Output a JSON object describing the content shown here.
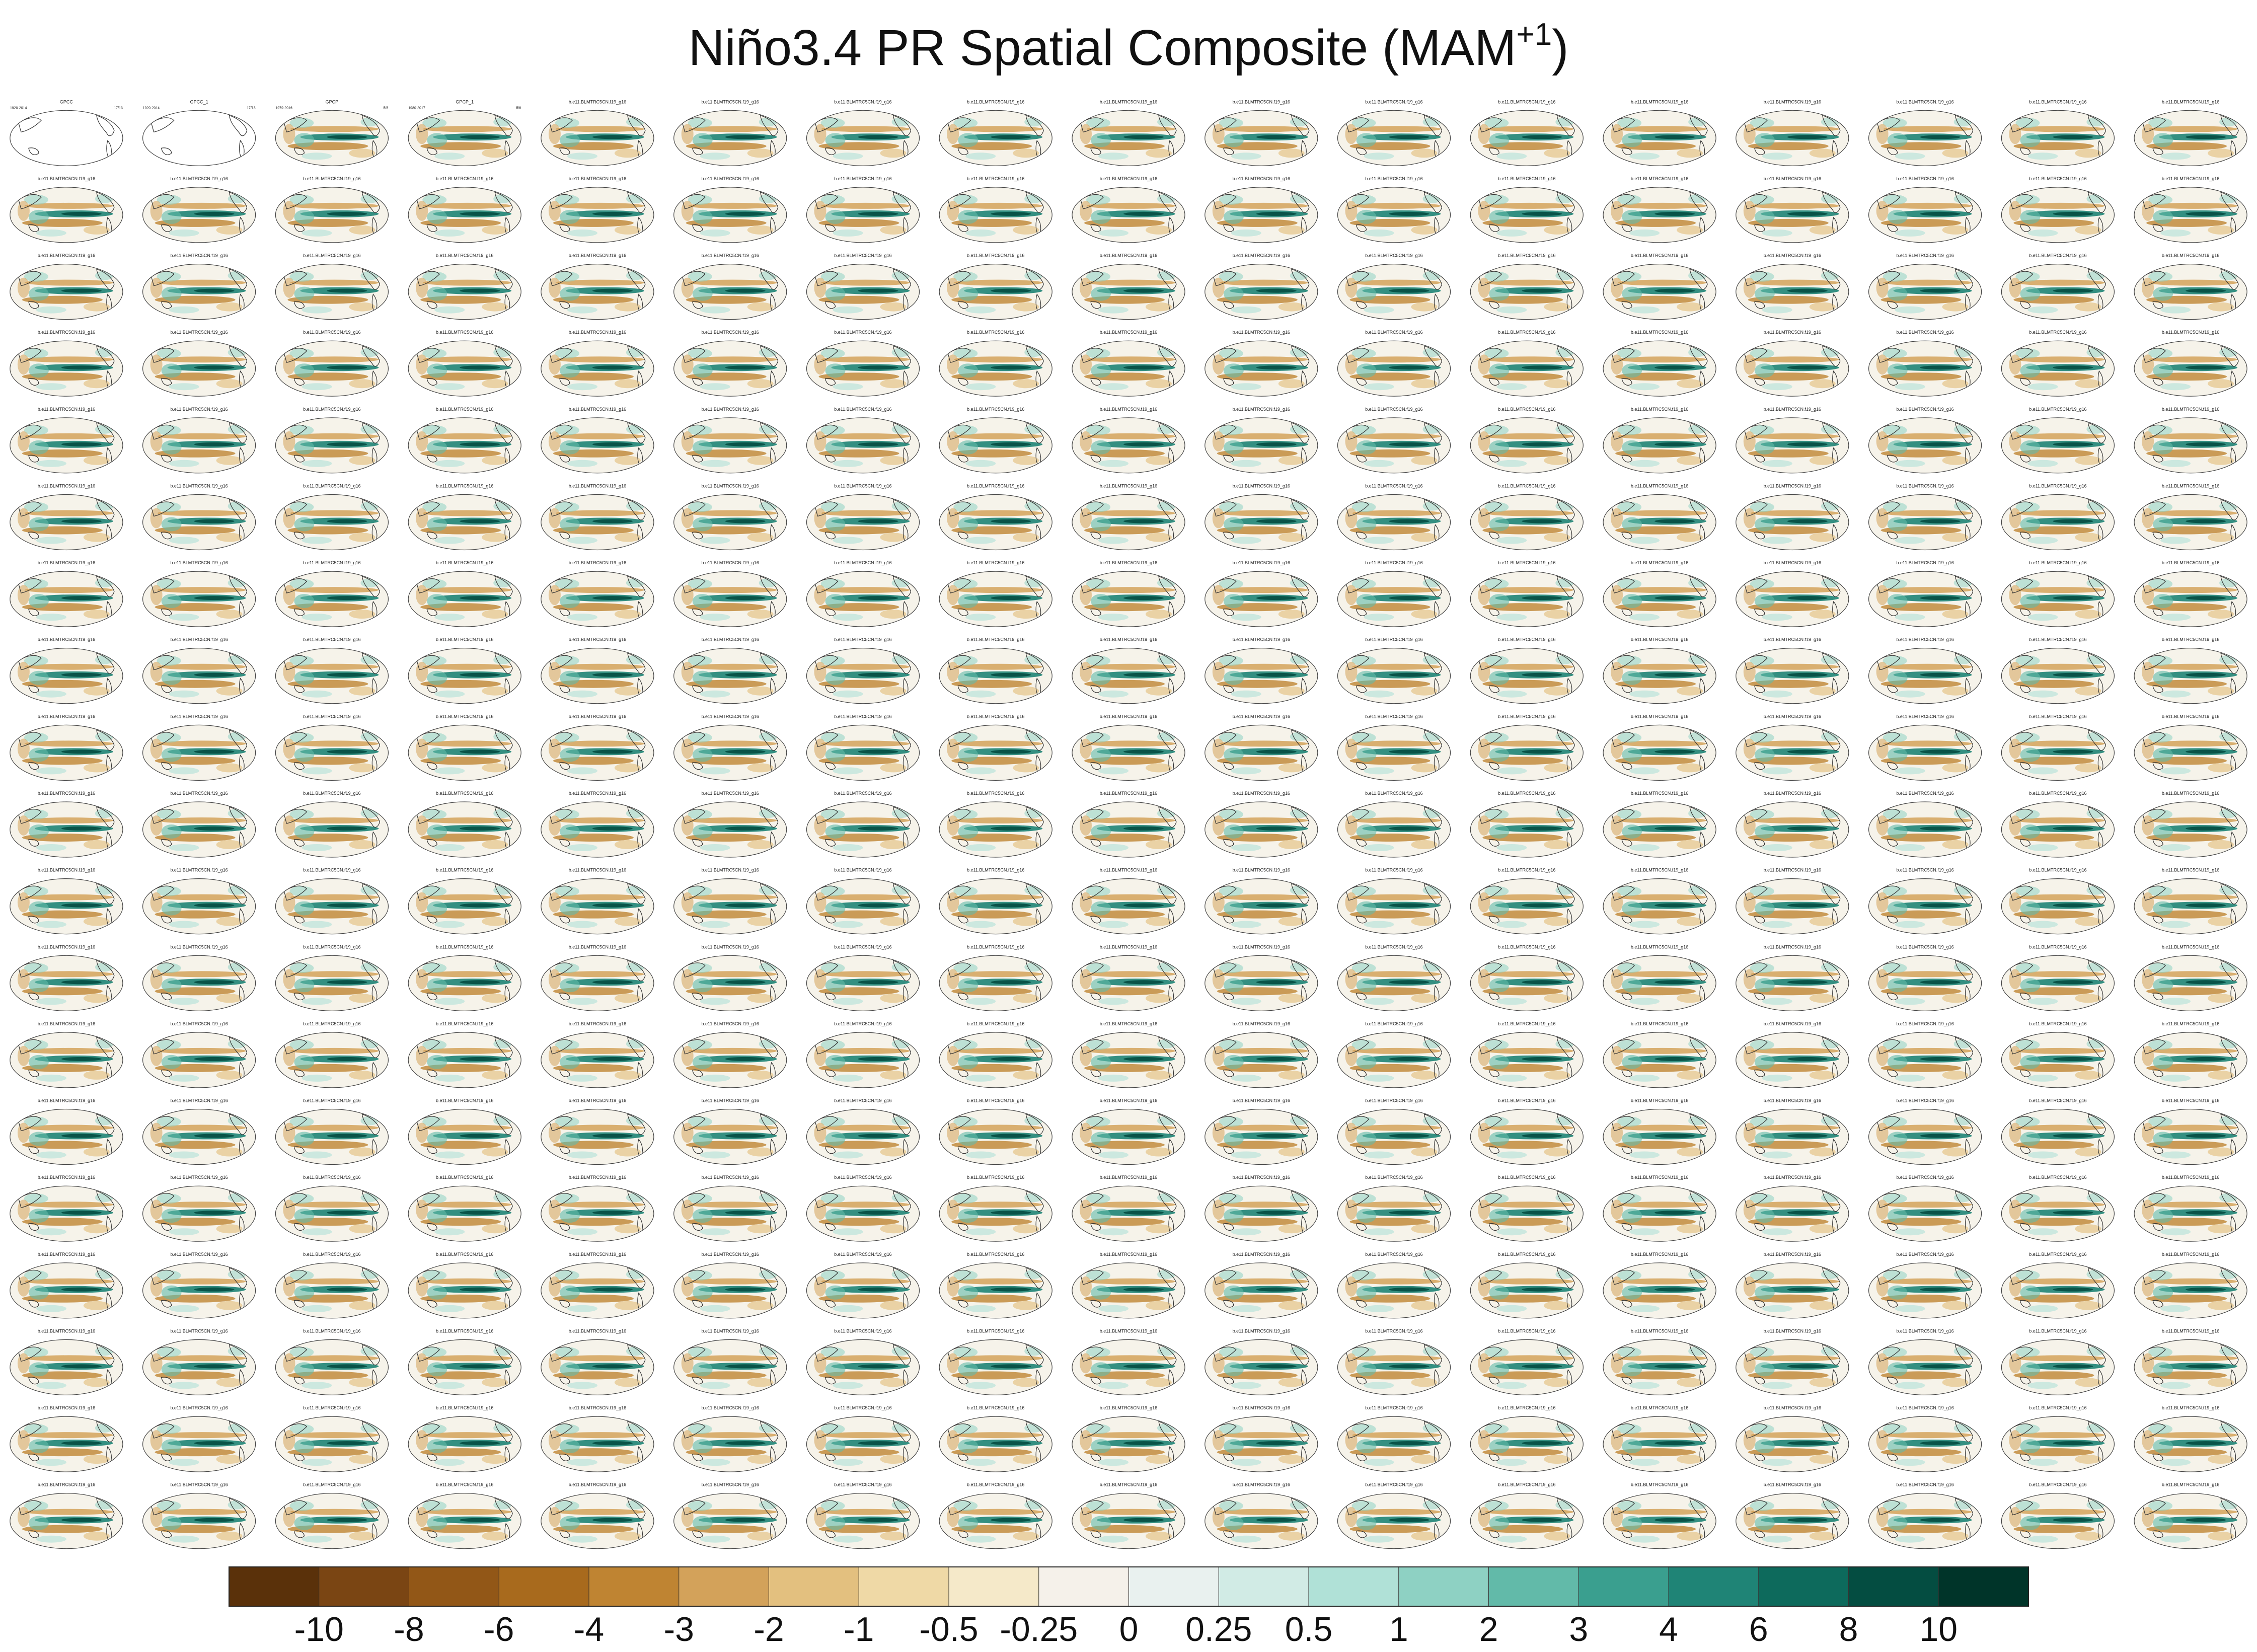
{
  "title": "Niño3.4 PR Spatial Composite (MAM",
  "title_superscript": "+1",
  "chart_data": {
    "type": "heatmap",
    "description": "Small-multiple grid of global precipitation composite maps",
    "layout": {
      "rows": 19,
      "cols": 17
    },
    "observational_panels": [
      {
        "name": "GPCC",
        "left_label": "1920-2014",
        "right_label": "17/13"
      },
      {
        "name": "GPCC_1",
        "left_label": "1920-2014",
        "right_label": "17/13"
      },
      {
        "name": "GPCP",
        "left_label": "1979-2016",
        "right_label": "5/6"
      },
      {
        "name": "GPCP_1",
        "left_label": "1980-2017",
        "right_label": "5/6"
      }
    ],
    "model_panel_label": "b.e11.BLMTRC5CN.f19_g16",
    "colorbar": {
      "tick_labels": [
        "-10",
        "-8",
        "-6",
        "-4",
        "-3",
        "-2",
        "-1",
        "-0.5",
        "-0.25",
        "0",
        "0.25",
        "0.5",
        "1",
        "2",
        "3",
        "4",
        "6",
        "8",
        "10"
      ],
      "colors": [
        "#5a310a",
        "#7a4513",
        "#925717",
        "#a86a1d",
        "#bf8432",
        "#d3a25a",
        "#e3c07f",
        "#efd9a6",
        "#f5e9c9",
        "#f5f1ea",
        "#e9f1ef",
        "#d1ebe5",
        "#b0e1d7",
        "#8ed1c3",
        "#62baa9",
        "#3a9f8f",
        "#1f8476",
        "#0d6a5c",
        "#044d41",
        "#003429"
      ]
    }
  }
}
